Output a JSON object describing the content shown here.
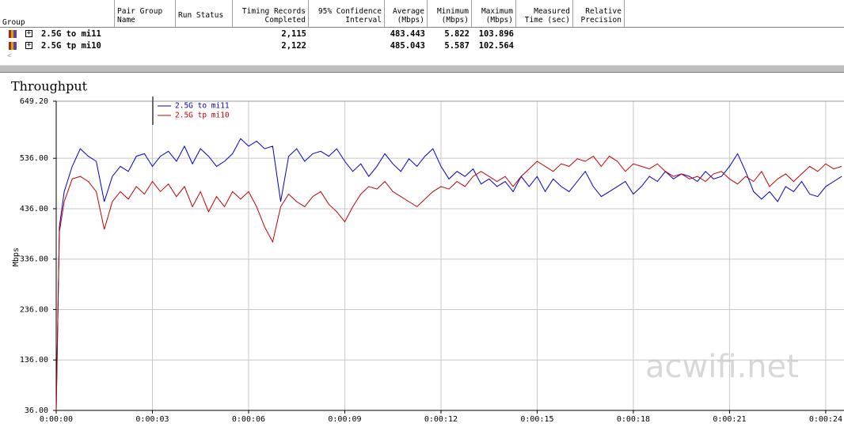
{
  "table": {
    "headers": [
      [
        "Group"
      ],
      [
        "Pair Group",
        "Name"
      ],
      [
        "Run Status"
      ],
      [
        "Timing Records",
        "Completed"
      ],
      [
        "95% Confidence",
        "Interval"
      ],
      [
        "Average",
        "(Mbps)"
      ],
      [
        "Minimum",
        "(Mbps)"
      ],
      [
        "Maximum",
        "(Mbps)"
      ],
      [
        "Measured",
        "Time (sec)"
      ],
      [
        "Relative",
        "Precision"
      ]
    ],
    "rows": [
      {
        "group": "2.5G to mi11",
        "records": "2,115",
        "average": "483.443",
        "minimum": "5.822",
        "maximum": "103.896"
      },
      {
        "group": "2.5G tp mi10",
        "records": "2,122",
        "average": "485.043",
        "minimum": "5.587",
        "maximum": "102.564"
      }
    ]
  },
  "chart_data": {
    "type": "line",
    "title": "Throughput",
    "y_label": "Mbps",
    "watermark": "acwifi.net",
    "grid": true,
    "legend": "top-left",
    "xlim": [
      0,
      24.57
    ],
    "xticks": [
      {
        "value": 0,
        "label": "0:00:00"
      },
      {
        "value": 3,
        "label": "0:00:03"
      },
      {
        "value": 6,
        "label": "0:00:06"
      },
      {
        "value": 9,
        "label": "0:00:09"
      },
      {
        "value": 12,
        "label": "0:00:12"
      },
      {
        "value": 15,
        "label": "0:00:15"
      },
      {
        "value": 18,
        "label": "0:00:18"
      },
      {
        "value": 21,
        "label": "0:00:21"
      },
      {
        "value": 24,
        "label": "0:00:24"
      }
    ],
    "ylim": [
      36,
      649.2
    ],
    "yticks": [
      {
        "value": 36,
        "label": "36.00"
      },
      {
        "value": 136,
        "label": "136.00"
      },
      {
        "value": 236,
        "label": "236.00"
      },
      {
        "value": 336,
        "label": "336.00"
      },
      {
        "value": 436,
        "label": "436.00"
      },
      {
        "value": 536,
        "label": "536.00"
      },
      {
        "value": 649.2,
        "label": "649.20"
      }
    ],
    "x": [
      0,
      0.1,
      0.25,
      0.5,
      0.75,
      1,
      1.25,
      1.5,
      1.75,
      2,
      2.25,
      2.5,
      2.75,
      3,
      3.25,
      3.5,
      3.75,
      4,
      4.25,
      4.5,
      4.75,
      5,
      5.25,
      5.5,
      5.75,
      6,
      6.25,
      6.5,
      6.75,
      7,
      7.25,
      7.5,
      7.75,
      8,
      8.25,
      8.5,
      8.75,
      9,
      9.25,
      9.5,
      9.75,
      10,
      10.25,
      10.5,
      10.75,
      11,
      11.25,
      11.5,
      11.75,
      12,
      12.25,
      12.5,
      12.75,
      13,
      13.25,
      13.5,
      13.75,
      14,
      14.25,
      14.5,
      14.75,
      15,
      15.25,
      15.5,
      15.75,
      16,
      16.25,
      16.5,
      16.75,
      17,
      17.25,
      17.5,
      17.75,
      18,
      18.25,
      18.5,
      18.75,
      19,
      19.25,
      19.5,
      19.75,
      20,
      20.25,
      20.5,
      20.75,
      21,
      21.25,
      21.5,
      21.75,
      22,
      22.25,
      22.5,
      22.75,
      23,
      23.25,
      23.5,
      23.75,
      24,
      24.25,
      24.5
    ],
    "series": [
      {
        "name": "2.5G to mi11",
        "color": "#0000c0",
        "values": [
          36,
          400,
          470,
          520,
          555,
          540,
          530,
          450,
          500,
          520,
          510,
          540,
          545,
          520,
          540,
          550,
          530,
          560,
          525,
          555,
          540,
          520,
          530,
          545,
          575,
          560,
          570,
          555,
          560,
          450,
          540,
          555,
          530,
          545,
          550,
          540,
          555,
          530,
          510,
          525,
          500,
          520,
          545,
          525,
          510,
          535,
          520,
          540,
          555,
          520,
          495,
          510,
          500,
          515,
          485,
          495,
          480,
          490,
          470,
          500,
          480,
          500,
          470,
          495,
          480,
          470,
          490,
          510,
          480,
          460,
          470,
          480,
          490,
          465,
          480,
          500,
          490,
          510,
          495,
          505,
          500,
          490,
          510,
          495,
          500,
          520,
          545,
          510,
          470,
          455,
          470,
          450,
          480,
          470,
          490,
          465,
          460,
          480,
          490,
          500
        ]
      },
      {
        "name": "2.5G tp mi10",
        "color": "#c00000",
        "values": [
          36,
          390,
          450,
          495,
          500,
          490,
          470,
          395,
          450,
          470,
          455,
          480,
          465,
          490,
          470,
          485,
          460,
          480,
          440,
          470,
          430,
          460,
          440,
          470,
          455,
          470,
          440,
          400,
          370,
          440,
          465,
          450,
          440,
          460,
          470,
          445,
          430,
          410,
          440,
          465,
          480,
          475,
          490,
          470,
          460,
          450,
          440,
          455,
          470,
          480,
          475,
          490,
          480,
          500,
          510,
          500,
          490,
          500,
          480,
          500,
          515,
          530,
          520,
          510,
          525,
          520,
          535,
          530,
          540,
          520,
          540,
          530,
          510,
          525,
          520,
          515,
          525,
          510,
          500,
          505,
          495,
          500,
          490,
          505,
          510,
          495,
          485,
          500,
          490,
          510,
          480,
          495,
          505,
          490,
          505,
          520,
          510,
          525,
          515,
          520
        ]
      }
    ]
  }
}
